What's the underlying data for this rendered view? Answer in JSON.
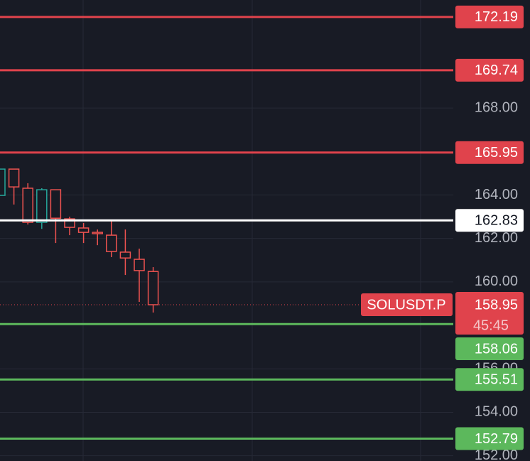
{
  "chart_data": {
    "type": "candlestick",
    "symbol": "SOLUSDT.P",
    "countdown": "45:45",
    "ylim": [
      151.76,
      172.97
    ],
    "yticks": [
      {
        "value": 152,
        "label": "152.00"
      },
      {
        "value": 154,
        "label": "154.00"
      },
      {
        "value": 156,
        "label": "156.00"
      },
      {
        "value": 160,
        "label": "160.00"
      },
      {
        "value": 162,
        "label": "162.00"
      },
      {
        "value": 164,
        "label": "164.00"
      },
      {
        "value": 168,
        "label": "168.00"
      }
    ],
    "grid": true,
    "up_color": "#26a69a",
    "down_color": "#ef5350",
    "open": [
      163.98,
      165.19,
      164.31,
      162.74,
      164.24,
      162.9,
      162.48,
      162.28,
      162.15,
      161.37,
      161.04,
      160.48
    ],
    "high": [
      165.19,
      165.19,
      164.54,
      164.31,
      164.24,
      163.0,
      162.71,
      162.41,
      162.84,
      162.41,
      161.53,
      160.68
    ],
    "low": [
      163.98,
      163.56,
      162.64,
      162.44,
      161.79,
      162.15,
      161.79,
      161.69,
      161.14,
      160.32,
      159.08,
      158.59
    ],
    "close": [
      165.19,
      164.37,
      162.74,
      164.24,
      162.93,
      162.51,
      162.28,
      162.22,
      161.4,
      161.1,
      160.52,
      158.95
    ],
    "last_price": 158.95,
    "last_price_color": "#e0434c",
    "price_lines": [
      {
        "value": 172.19,
        "color": "#e0434c"
      },
      {
        "value": 169.74,
        "color": "#e0434c"
      },
      {
        "value": 165.95,
        "color": "#e0434c"
      },
      {
        "value": 162.83,
        "color": "#ffffff"
      },
      {
        "value": 158.06,
        "color": "#5cb85c"
      },
      {
        "value": 155.51,
        "color": "#5cb85c"
      },
      {
        "value": 152.79,
        "color": "#5cb85c"
      }
    ]
  }
}
